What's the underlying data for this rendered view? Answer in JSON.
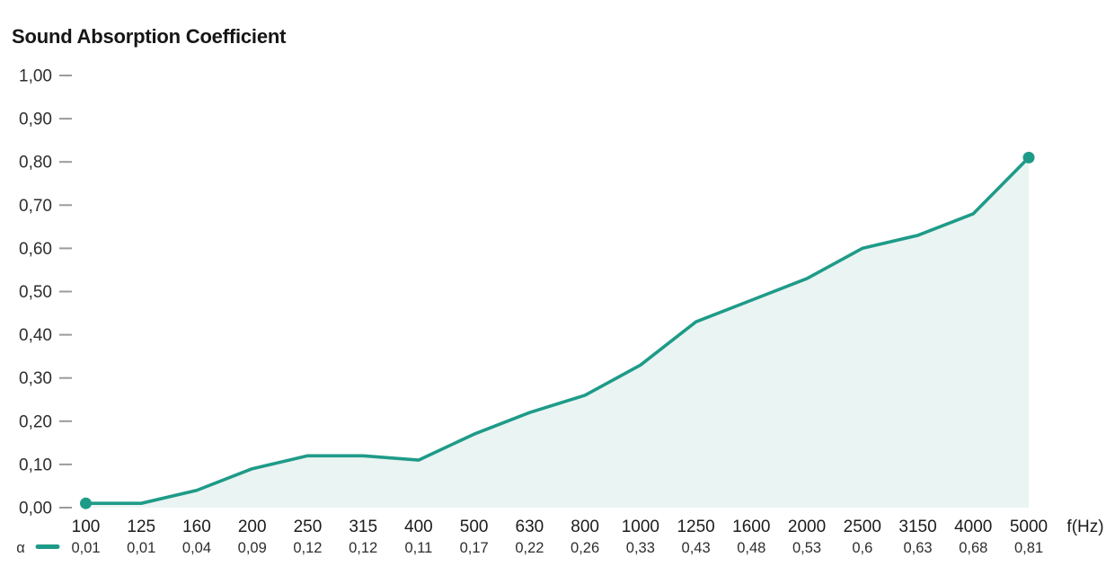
{
  "chart_data": {
    "type": "area",
    "title": "Sound Absorption Coefficient",
    "x_axis_unit": "f(Hz)",
    "legend_symbol": "α",
    "categories": [
      "100",
      "125",
      "160",
      "200",
      "250",
      "315",
      "400",
      "500",
      "630",
      "800",
      "1000",
      "1250",
      "1600",
      "2000",
      "2500",
      "3150",
      "4000",
      "5000"
    ],
    "values": [
      0.01,
      0.01,
      0.04,
      0.09,
      0.12,
      0.12,
      0.11,
      0.17,
      0.22,
      0.26,
      0.33,
      0.43,
      0.48,
      0.53,
      0.6,
      0.63,
      0.68,
      0.81
    ],
    "value_labels": [
      "0,01",
      "0,01",
      "0,04",
      "0,09",
      "0,12",
      "0,12",
      "0,11",
      "0,17",
      "0,22",
      "0,26",
      "0,33",
      "0,43",
      "0,48",
      "0,53",
      "0,6",
      "0,63",
      "0,68",
      "0,81"
    ],
    "y_ticks": [
      "1,00",
      "0,90",
      "0,80",
      "0,70",
      "0,60",
      "0,50",
      "0,40",
      "0,30",
      "0,20",
      "0,10",
      "0,00"
    ],
    "ylim": [
      0,
      1
    ],
    "grid": false,
    "legend_position": "bottom-left",
    "marker_points": "first-and-last",
    "colors": {
      "line": "#1E9B88",
      "fill": "#EAF4F2",
      "text": "#1c1c1c",
      "tick": "#9b9b9b"
    }
  }
}
